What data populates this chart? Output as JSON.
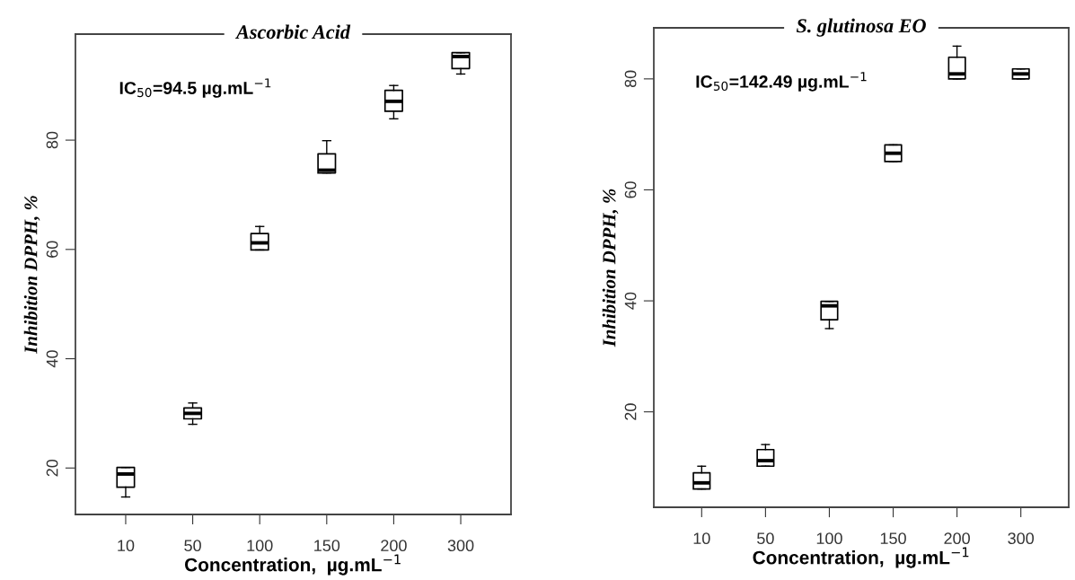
{
  "chart_data": [
    {
      "type": "box",
      "title": "Ascorbic Acid",
      "xlabel": "Concentration,  µg.mL$^{−1}$",
      "ylabel": "Inhibition DPPH, %",
      "annotations": [
        "IC$_{50}$=94.5 µg.mL$^{−1}$"
      ],
      "categories": [
        "10",
        "50",
        "100",
        "150",
        "200",
        "300"
      ],
      "ylim": [
        11.5,
        99.4
      ],
      "yticks": [
        20,
        40,
        60,
        80
      ],
      "grid": false,
      "boxes": [
        {
          "low": 14.7,
          "q1": 16.5,
          "median": 18.9,
          "q3": 20.1,
          "high": 20.1
        },
        {
          "low": 28.0,
          "q1": 29.0,
          "median": 30.0,
          "q3": 31.0,
          "high": 31.9
        },
        {
          "low": 59.9,
          "q1": 59.9,
          "median": 61.2,
          "q3": 62.9,
          "high": 64.2
        },
        {
          "low": 74.0,
          "q1": 74.0,
          "median": 74.5,
          "q3": 77.5,
          "high": 79.9
        },
        {
          "low": 83.9,
          "q1": 85.3,
          "median": 87.1,
          "q3": 89.1,
          "high": 90.0
        },
        {
          "low": 92.1,
          "q1": 93.1,
          "median": 95.3,
          "q3": 96.0,
          "high": 96.0
        }
      ]
    },
    {
      "type": "box",
      "title": "S. glutinosa EO",
      "xlabel": "Concentration,  µg.mL$^{−1}$",
      "ylabel": "Inhibition DPPH, %",
      "annotations": [
        "IC$_{50}$=142.49 µg.mL$^{−1}$"
      ],
      "categories": [
        "10",
        "50",
        "100",
        "150",
        "200",
        "300"
      ],
      "ylim": [
        2.8,
        89.2
      ],
      "yticks": [
        20,
        40,
        60,
        80
      ],
      "grid": false,
      "boxes": [
        {
          "low": 6.1,
          "q1": 6.1,
          "median": 7.2,
          "q3": 9.0,
          "high": 10.2
        },
        {
          "low": 10.2,
          "q1": 10.2,
          "median": 11.2,
          "q3": 13.2,
          "high": 14.1
        },
        {
          "low": 35.0,
          "q1": 36.6,
          "median": 39.1,
          "q3": 39.9,
          "high": 39.9
        },
        {
          "low": 65.1,
          "q1": 65.1,
          "median": 66.6,
          "q3": 68.1,
          "high": 68.1
        },
        {
          "low": 80.0,
          "q1": 80.0,
          "median": 80.9,
          "q3": 83.9,
          "high": 85.9
        },
        {
          "low": 80.0,
          "q1": 80.0,
          "median": 80.9,
          "q3": 81.8,
          "high": 81.8
        }
      ]
    }
  ]
}
